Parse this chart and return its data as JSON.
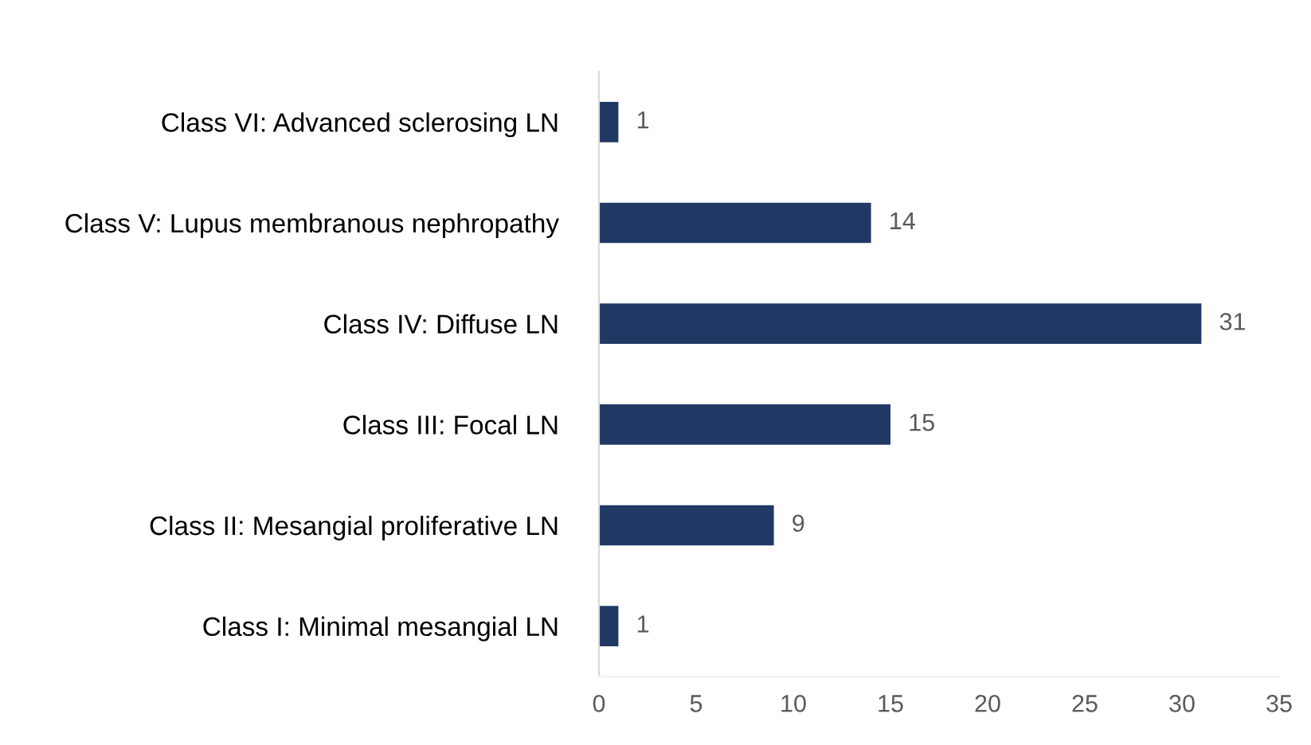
{
  "chart_data": {
    "type": "bar",
    "orientation": "horizontal",
    "categories": [
      "Class VI: Advanced sclerosing LN",
      "Class V: Lupus membranous nephropathy",
      "Class IV: Diffuse LN",
      "Class III: Focal LN",
      "Class II: Mesangial proliferative LN",
      "Class I: Minimal mesangial LN"
    ],
    "values": [
      1,
      14,
      31,
      15,
      9,
      1
    ],
    "color": "#203864",
    "xlim": [
      0,
      35
    ],
    "xticks": [
      0,
      5,
      10,
      15,
      20,
      25,
      30,
      35
    ],
    "grid": false,
    "data_labels": true
  }
}
